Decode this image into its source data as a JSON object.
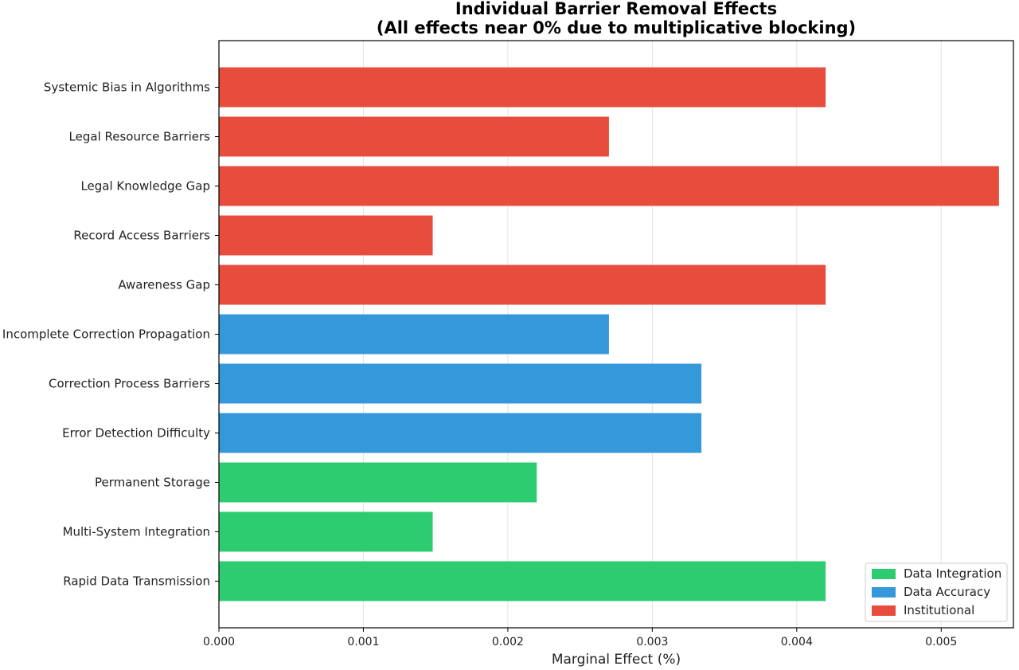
{
  "chart_data": {
    "type": "bar",
    "orientation": "horizontal",
    "title": "Individual Barrier Removal Effects",
    "subtitle": "(All effects near 0% due to multiplicative blocking)",
    "xlabel": "Marginal Effect (%)",
    "ylabel": "",
    "xlim": [
      0,
      0.0055
    ],
    "xticks": [
      "0.000",
      "0.001",
      "0.002",
      "0.003",
      "0.004",
      "0.005"
    ],
    "xtick_values": [
      0,
      0.001,
      0.002,
      0.003,
      0.004,
      0.005
    ],
    "grid": "vertical",
    "legend_position": "bottom-right",
    "categories": [
      "Systemic Bias in Algorithms",
      "Legal Resource Barriers",
      "Legal Knowledge Gap",
      "Record Access Barriers",
      "Awareness Gap",
      "Incomplete Correction Propagation",
      "Correction Process Barriers",
      "Error Detection Difficulty",
      "Permanent Storage",
      "Multi-System Integration",
      "Rapid Data Transmission"
    ],
    "values": [
      0.0042,
      0.0027,
      0.0054,
      0.00148,
      0.0042,
      0.0027,
      0.00334,
      0.00334,
      0.0022,
      0.00148,
      0.0042
    ],
    "groups": [
      "Institutional",
      "Institutional",
      "Institutional",
      "Institutional",
      "Institutional",
      "Data Accuracy",
      "Data Accuracy",
      "Data Accuracy",
      "Data Integration",
      "Data Integration",
      "Data Integration"
    ],
    "legend": [
      {
        "name": "Data Integration",
        "color": "#2ecc71"
      },
      {
        "name": "Data Accuracy",
        "color": "#3498db"
      },
      {
        "name": "Institutional",
        "color": "#e74c3c"
      }
    ]
  }
}
